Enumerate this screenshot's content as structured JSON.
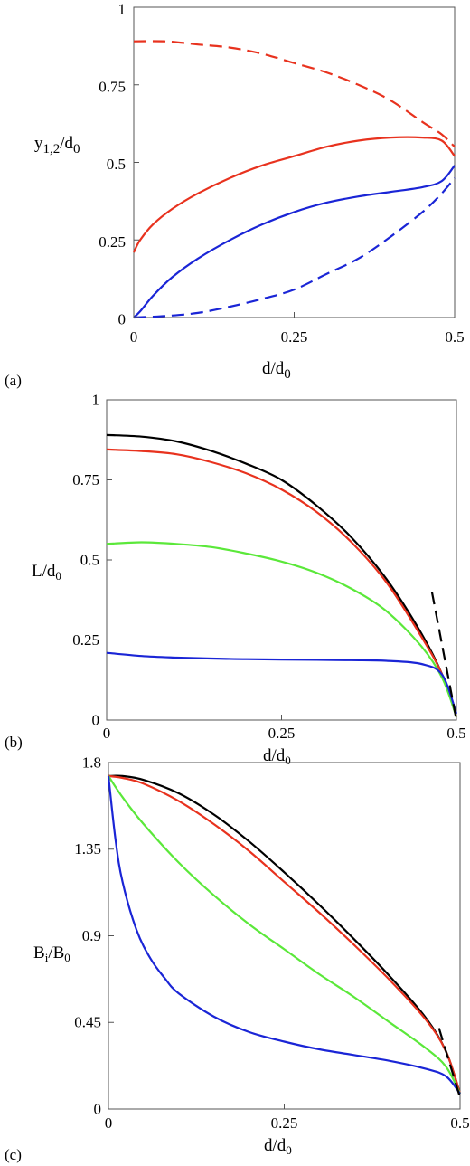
{
  "chart_data": [
    {
      "panel_label": "(a)",
      "type": "line",
      "xlabel": "d/d0",
      "ylabel": "y1,2/d0",
      "xlim": [
        0,
        0.5
      ],
      "ylim": [
        0,
        1
      ],
      "xticks": [
        "0",
        "0.25",
        "0.5"
      ],
      "yticks": [
        "0",
        "0.25",
        "0.5",
        "0.75",
        "1"
      ],
      "grid": false,
      "series": [
        {
          "color": "#e8321e",
          "dash": true,
          "x": [
            0,
            0.05,
            0.1,
            0.15,
            0.2,
            0.25,
            0.3,
            0.35,
            0.4,
            0.45,
            0.48,
            0.5
          ],
          "y": [
            0.89,
            0.89,
            0.88,
            0.87,
            0.85,
            0.82,
            0.79,
            0.75,
            0.7,
            0.63,
            0.59,
            0.55
          ]
        },
        {
          "color": "#e8321e",
          "dash": false,
          "x": [
            0,
            0.01,
            0.03,
            0.06,
            0.1,
            0.15,
            0.2,
            0.25,
            0.3,
            0.35,
            0.4,
            0.45,
            0.48,
            0.5
          ],
          "y": [
            0.21,
            0.25,
            0.3,
            0.35,
            0.4,
            0.45,
            0.49,
            0.52,
            0.55,
            0.57,
            0.58,
            0.58,
            0.57,
            0.52
          ]
        },
        {
          "color": "#1a25d6",
          "dash": false,
          "x": [
            0,
            0.01,
            0.03,
            0.06,
            0.1,
            0.15,
            0.2,
            0.25,
            0.3,
            0.35,
            0.4,
            0.45,
            0.48,
            0.5
          ],
          "y": [
            0,
            0.02,
            0.07,
            0.13,
            0.19,
            0.25,
            0.3,
            0.34,
            0.37,
            0.39,
            0.405,
            0.42,
            0.44,
            0.49
          ]
        },
        {
          "color": "#1a25d6",
          "dash": true,
          "x": [
            0,
            0.05,
            0.1,
            0.15,
            0.2,
            0.25,
            0.3,
            0.35,
            0.4,
            0.45,
            0.48,
            0.5
          ],
          "y": [
            0,
            0.005,
            0.015,
            0.035,
            0.06,
            0.09,
            0.14,
            0.19,
            0.26,
            0.34,
            0.4,
            0.45
          ]
        }
      ]
    },
    {
      "panel_label": "(b)",
      "type": "line",
      "xlabel": "d/d0",
      "ylabel": "L/d0",
      "xlim": [
        0,
        0.5
      ],
      "ylim": [
        0,
        1
      ],
      "xticks": [
        "0",
        "0.25",
        "0.5"
      ],
      "yticks": [
        "0",
        "0.25",
        "0.5",
        "0.75",
        "1"
      ],
      "grid": false,
      "series": [
        {
          "color": "#000000",
          "dash": false,
          "x": [
            0,
            0.05,
            0.1,
            0.15,
            0.2,
            0.25,
            0.3,
            0.35,
            0.4,
            0.45,
            0.48,
            0.5
          ],
          "y": [
            0.89,
            0.885,
            0.87,
            0.84,
            0.8,
            0.75,
            0.67,
            0.57,
            0.44,
            0.27,
            0.14,
            0.01
          ]
        },
        {
          "color": "#e8321e",
          "dash": false,
          "x": [
            0,
            0.05,
            0.1,
            0.15,
            0.2,
            0.25,
            0.3,
            0.35,
            0.4,
            0.45,
            0.48,
            0.5
          ],
          "y": [
            0.845,
            0.84,
            0.83,
            0.805,
            0.77,
            0.72,
            0.65,
            0.555,
            0.43,
            0.26,
            0.14,
            0.01
          ]
        },
        {
          "color": "#5be83a",
          "dash": false,
          "x": [
            0,
            0.05,
            0.1,
            0.15,
            0.2,
            0.25,
            0.3,
            0.35,
            0.4,
            0.45,
            0.48,
            0.5
          ],
          "y": [
            0.55,
            0.555,
            0.55,
            0.54,
            0.52,
            0.495,
            0.46,
            0.41,
            0.34,
            0.23,
            0.13,
            0.01
          ]
        },
        {
          "color": "#1a25d6",
          "dash": false,
          "x": [
            0,
            0.05,
            0.1,
            0.15,
            0.2,
            0.25,
            0.3,
            0.35,
            0.4,
            0.45,
            0.48,
            0.5
          ],
          "y": [
            0.21,
            0.2,
            0.195,
            0.192,
            0.19,
            0.189,
            0.188,
            0.187,
            0.185,
            0.175,
            0.14,
            0.02
          ]
        },
        {
          "color": "#000000",
          "dash": true,
          "x": [
            0.465,
            0.5
          ],
          "y": [
            0.4,
            0.0
          ]
        }
      ]
    },
    {
      "panel_label": "(c)",
      "type": "line",
      "xlabel": "d/d0",
      "ylabel": "Bi/B0",
      "xlim": [
        0,
        0.5
      ],
      "ylim": [
        0,
        1.8
      ],
      "xticks": [
        "0",
        "0.25",
        "0.5"
      ],
      "yticks": [
        "0",
        "0.45",
        "0.9",
        "1.35",
        "1.8"
      ],
      "grid": false,
      "series": [
        {
          "color": "#000000",
          "dash": false,
          "x": [
            0,
            0.02,
            0.05,
            0.1,
            0.15,
            0.2,
            0.25,
            0.3,
            0.35,
            0.4,
            0.45,
            0.48,
            0.5
          ],
          "y": [
            1.73,
            1.73,
            1.71,
            1.64,
            1.53,
            1.39,
            1.23,
            1.06,
            0.88,
            0.69,
            0.48,
            0.3,
            0.08
          ]
        },
        {
          "color": "#e8321e",
          "dash": false,
          "x": [
            0,
            0.02,
            0.05,
            0.1,
            0.15,
            0.2,
            0.25,
            0.3,
            0.35,
            0.4,
            0.45,
            0.48,
            0.5
          ],
          "y": [
            1.73,
            1.72,
            1.69,
            1.6,
            1.48,
            1.34,
            1.18,
            1.02,
            0.85,
            0.67,
            0.47,
            0.3,
            0.08
          ]
        },
        {
          "color": "#5be83a",
          "dash": false,
          "x": [
            0,
            0.02,
            0.05,
            0.1,
            0.15,
            0.2,
            0.25,
            0.3,
            0.35,
            0.4,
            0.45,
            0.48,
            0.5
          ],
          "y": [
            1.73,
            1.62,
            1.48,
            1.28,
            1.11,
            0.96,
            0.83,
            0.7,
            0.58,
            0.45,
            0.32,
            0.22,
            0.08
          ]
        },
        {
          "color": "#1a25d6",
          "dash": false,
          "x": [
            0,
            0.01,
            0.02,
            0.04,
            0.06,
            0.08,
            0.1,
            0.15,
            0.2,
            0.25,
            0.3,
            0.35,
            0.4,
            0.45,
            0.48,
            0.5
          ],
          "y": [
            1.73,
            1.4,
            1.18,
            0.93,
            0.78,
            0.68,
            0.6,
            0.48,
            0.4,
            0.35,
            0.31,
            0.28,
            0.25,
            0.21,
            0.17,
            0.08
          ]
        },
        {
          "color": "#000000",
          "dash": true,
          "x": [
            0.47,
            0.5
          ],
          "y": [
            0.42,
            0.06
          ]
        }
      ]
    }
  ]
}
